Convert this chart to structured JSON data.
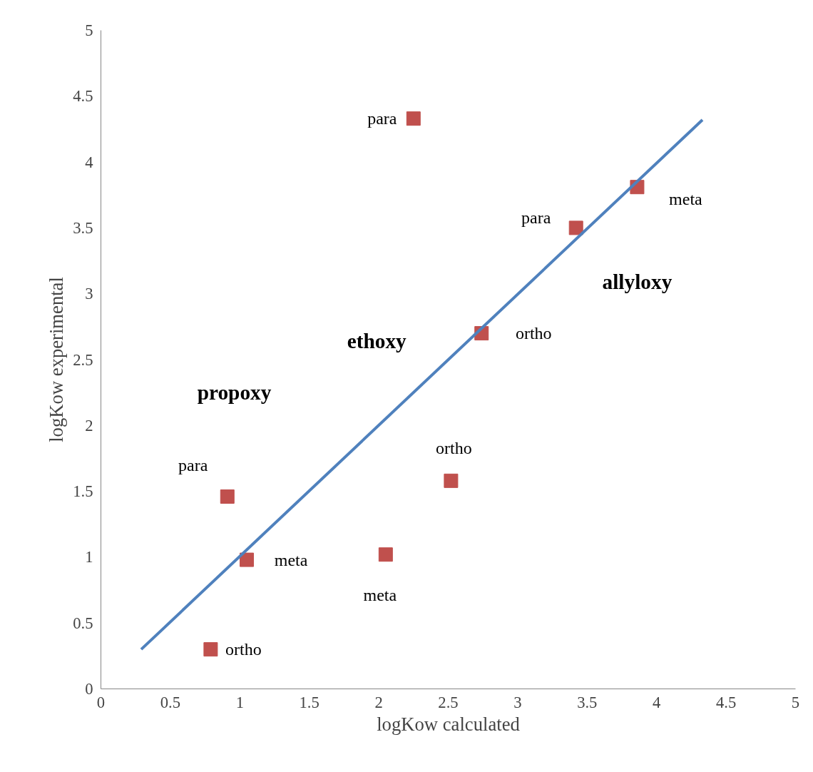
{
  "chart_data": {
    "type": "scatter",
    "xlabel": "logKow calculated",
    "ylabel": "logKow experimental",
    "xlim": [
      0,
      5
    ],
    "ylim": [
      0,
      5
    ],
    "xticks": [
      0,
      0.5,
      1,
      1.5,
      2,
      2.5,
      3,
      3.5,
      4,
      4.5,
      5
    ],
    "yticks": [
      0,
      0.5,
      1,
      1.5,
      2,
      2.5,
      3,
      3.5,
      4,
      4.5,
      5
    ],
    "grid": false,
    "series": [
      {
        "marker": "square",
        "color": "#c0504d",
        "x": [
          0.79,
          0.91,
          1.05,
          2.05,
          2.25,
          2.52,
          2.74,
          3.42,
          3.86
        ],
        "values": [
          0.3,
          1.46,
          0.98,
          1.02,
          4.33,
          1.58,
          2.7,
          3.5,
          3.81
        ],
        "value_labels": [
          "ortho",
          "para",
          "meta",
          "meta",
          "para",
          "ortho",
          "ortho",
          "para",
          "meta"
        ]
      },
      {
        "type": "line",
        "color": "#4f81bd",
        "x": [
          0.29,
          4.33
        ],
        "values": [
          0.3,
          4.32
        ],
        "line_style": "solid"
      }
    ],
    "annotations": [
      "propoxy",
      "ethoxy",
      "allyloxy"
    ]
  }
}
